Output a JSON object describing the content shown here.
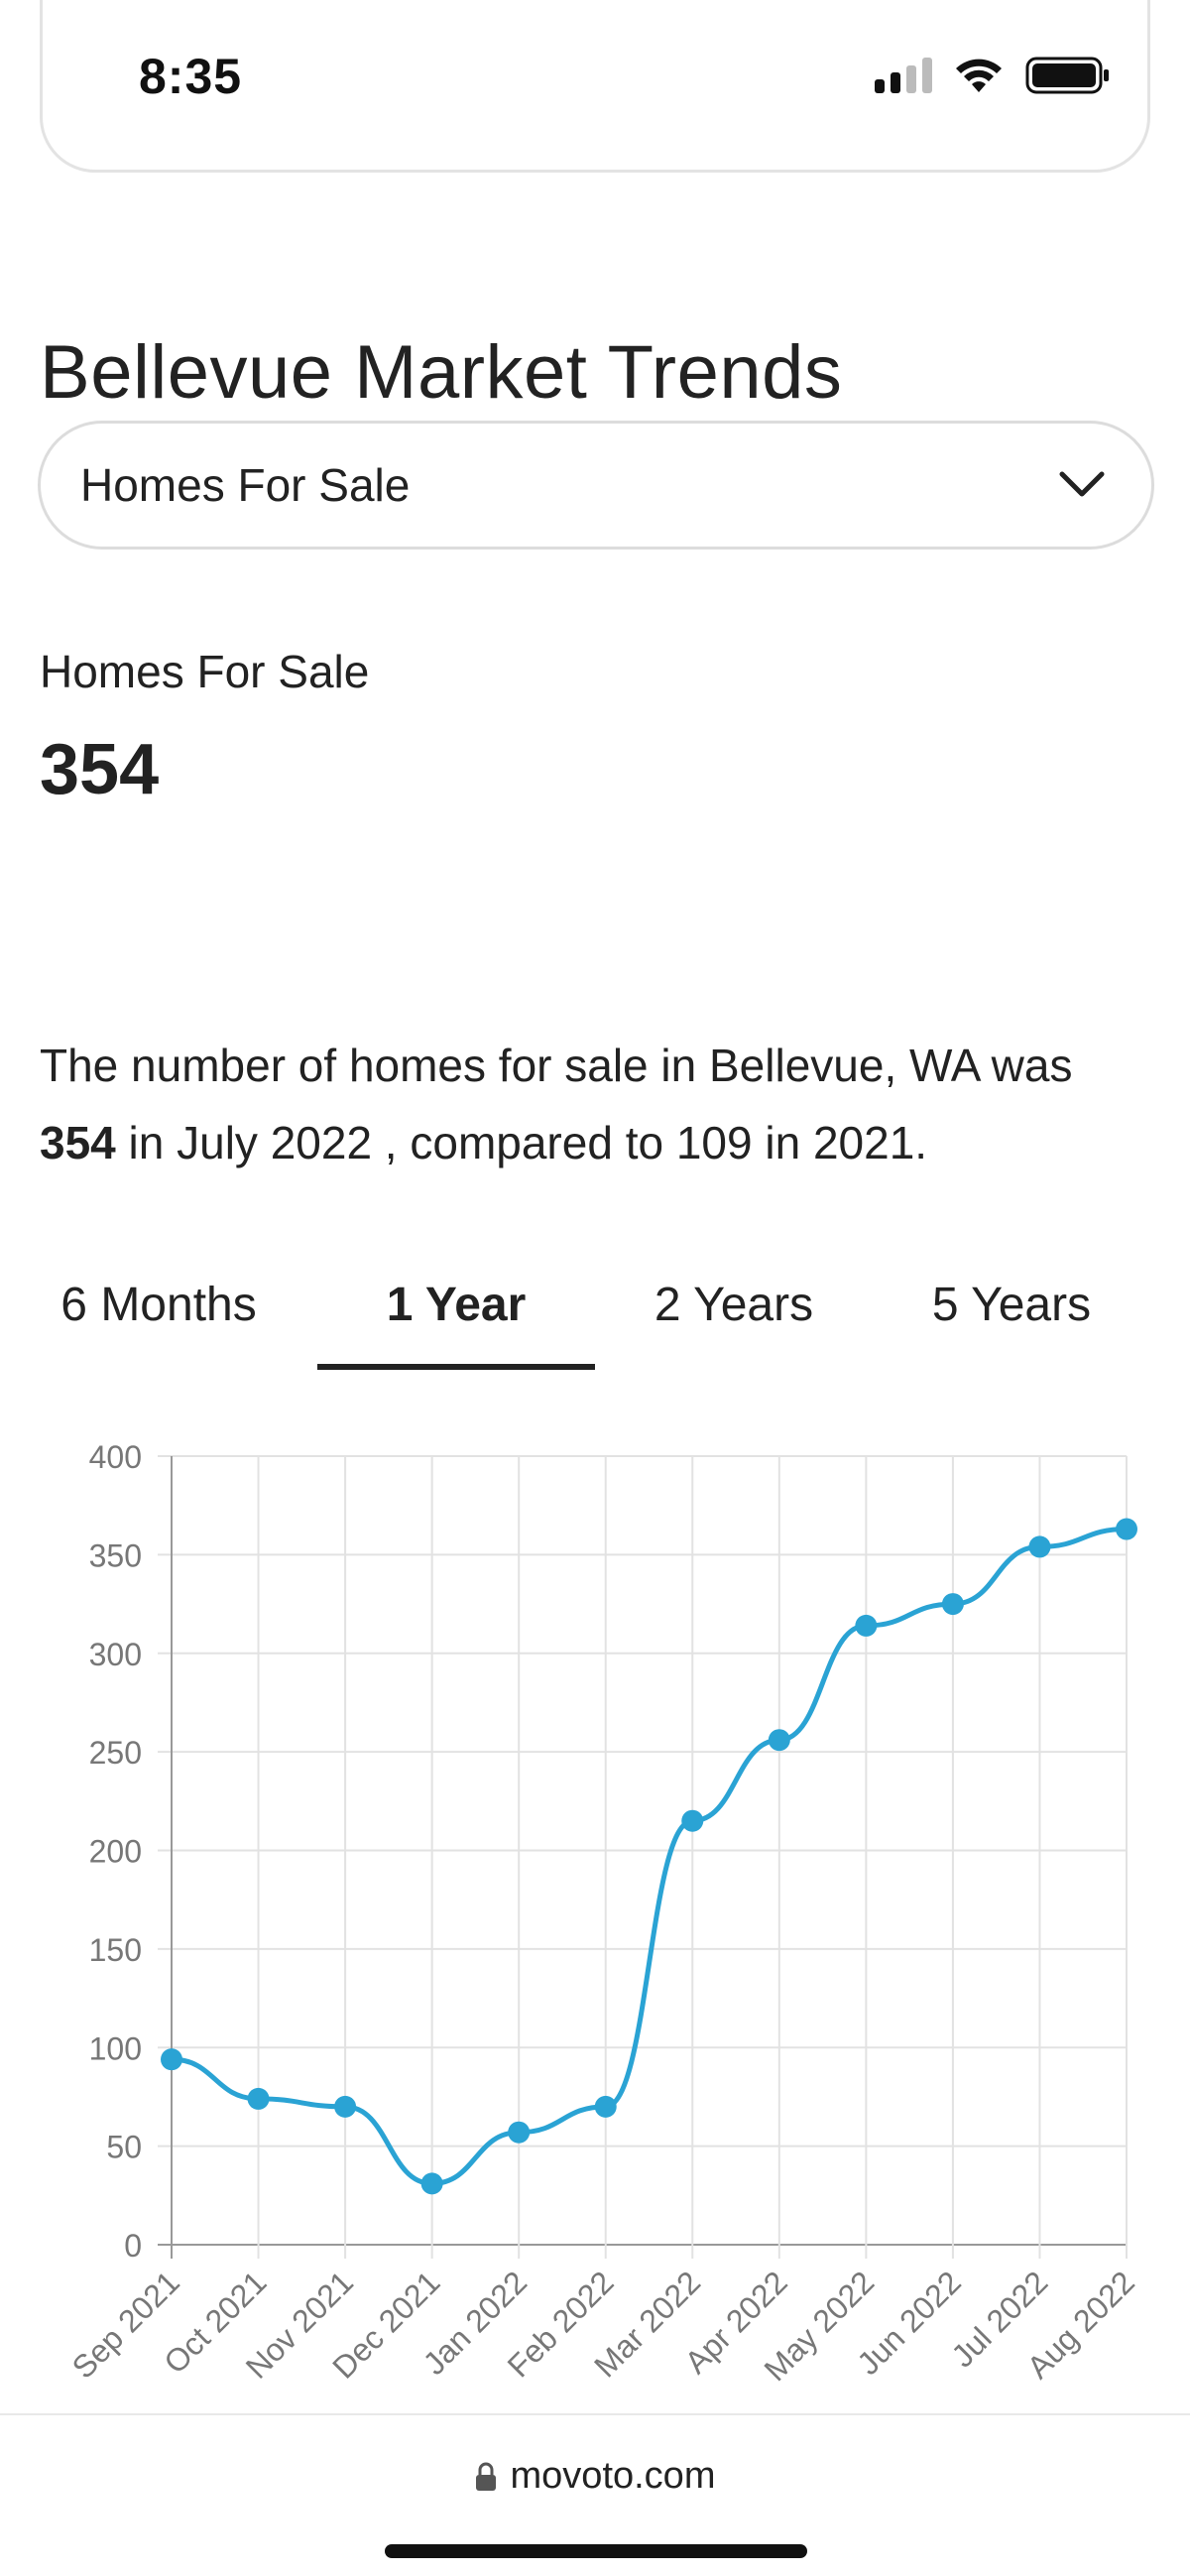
{
  "status": {
    "time": "8:35"
  },
  "page": {
    "title": "Bellevue Market Trends"
  },
  "dropdown": {
    "selected": "Homes For Sale"
  },
  "stat": {
    "label": "Homes For Sale",
    "value": "354"
  },
  "description": {
    "part1": "The number of homes for sale in Bellevue, WA was ",
    "value": "354",
    "part2": " in July 2022 , compared to 109 in 2021."
  },
  "tabs": [
    {
      "label": "6 Months",
      "active": false
    },
    {
      "label": "1 Year",
      "active": true
    },
    {
      "label": "2 Years",
      "active": false
    },
    {
      "label": "5 Years",
      "active": false
    }
  ],
  "chart_data": {
    "type": "line",
    "categories": [
      "Sep 2021",
      "Oct 2021",
      "Nov 2021",
      "Dec 2021",
      "Jan 2022",
      "Feb 2022",
      "Mar 2022",
      "Apr 2022",
      "May 2022",
      "Jun 2022",
      "Jul 2022",
      "Aug 2022"
    ],
    "values": [
      94,
      74,
      70,
      31,
      57,
      70,
      215,
      256,
      314,
      325,
      354,
      363
    ],
    "yticks": [
      0,
      50,
      100,
      150,
      200,
      250,
      300,
      350,
      400
    ],
    "ylim": [
      0,
      400
    ],
    "grid": true,
    "color": "#2aa3d4"
  },
  "footer": {
    "url": "movoto.com"
  }
}
